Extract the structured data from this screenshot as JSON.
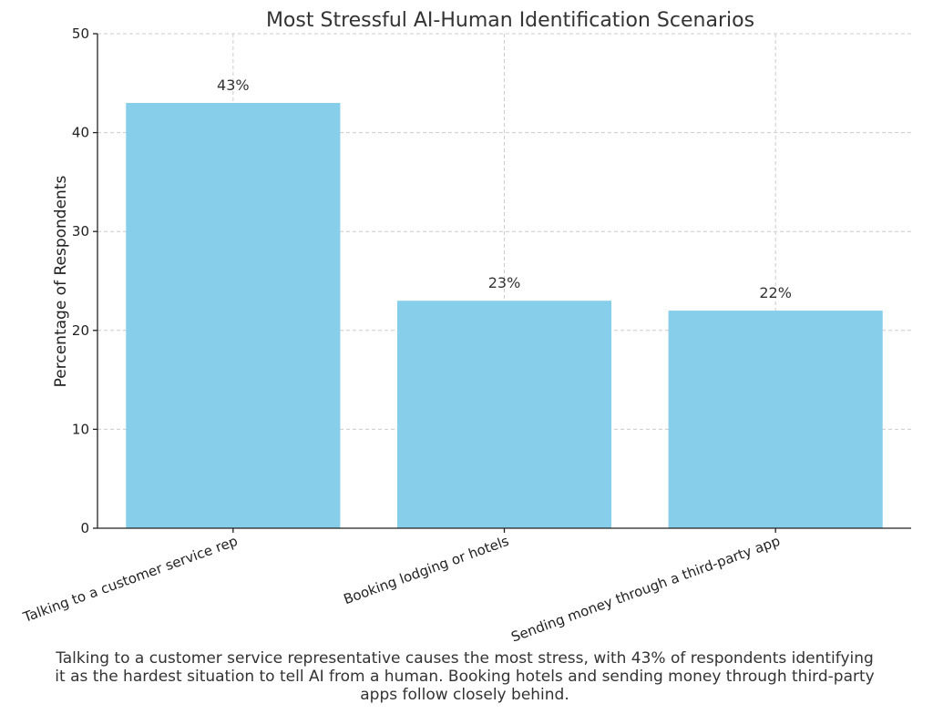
{
  "chart_data": {
    "type": "bar",
    "title": "Most Stressful AI-Human Identification Scenarios",
    "xlabel": "",
    "ylabel": "Percentage of Respondents",
    "categories": [
      "Talking to a customer service rep",
      "Booking lodging or hotels",
      "Sending money through a third-party app"
    ],
    "values": [
      43,
      23,
      22
    ],
    "data_labels": [
      "43%",
      "23%",
      "22%"
    ],
    "ylim": [
      0,
      50
    ],
    "yticks": [
      0,
      10,
      20,
      30,
      40,
      50
    ],
    "ytick_labels": [
      "0",
      "10",
      "20",
      "30",
      "40",
      "50"
    ],
    "bar_color": "#87CEEB",
    "grid": true,
    "legend": "none",
    "caption": "Talking to a customer service representative causes the most stress, with 43% of respondents identifying it as the hardest situation to tell AI from a human. Booking hotels and sending money through third-party apps follow closely behind."
  }
}
